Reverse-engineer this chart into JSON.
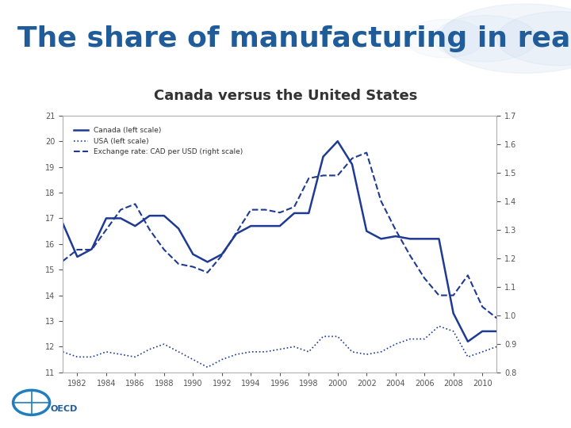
{
  "title": "The share of manufacturing in real GDP",
  "subtitle": "Canada versus the United States",
  "title_color": "#1F5C99",
  "subtitle_color": "#333333",
  "title_fontsize": 26,
  "subtitle_fontsize": 13,
  "line_color": "#1F3A93",
  "years": [
    1981,
    1982,
    1983,
    1984,
    1985,
    1986,
    1987,
    1988,
    1989,
    1990,
    1991,
    1992,
    1993,
    1994,
    1995,
    1996,
    1997,
    1998,
    1999,
    2000,
    2001,
    2002,
    2003,
    2004,
    2005,
    2006,
    2007,
    2008,
    2009,
    2010,
    2011
  ],
  "canada": [
    16.8,
    15.5,
    15.8,
    17.0,
    17.0,
    16.7,
    17.1,
    17.1,
    16.6,
    15.6,
    15.3,
    15.6,
    16.4,
    16.7,
    16.7,
    16.7,
    17.2,
    17.2,
    19.4,
    20.0,
    19.1,
    16.5,
    16.2,
    16.3,
    16.2,
    16.2,
    16.2,
    13.3,
    12.2,
    12.6,
    12.6
  ],
  "usa": [
    11.8,
    11.6,
    11.6,
    11.8,
    11.7,
    11.6,
    11.9,
    12.1,
    11.8,
    11.5,
    11.2,
    11.5,
    11.7,
    11.8,
    11.8,
    11.9,
    12.0,
    11.8,
    12.4,
    12.4,
    11.8,
    11.7,
    11.8,
    12.1,
    12.3,
    12.3,
    12.8,
    12.6,
    11.6,
    11.8,
    12.0
  ],
  "exchange": [
    1.19,
    1.23,
    1.23,
    1.3,
    1.37,
    1.39,
    1.3,
    1.23,
    1.18,
    1.17,
    1.15,
    1.21,
    1.29,
    1.37,
    1.37,
    1.36,
    1.38,
    1.48,
    1.49,
    1.49,
    1.55,
    1.57,
    1.4,
    1.3,
    1.21,
    1.13,
    1.07,
    1.07,
    1.14,
    1.03,
    0.99
  ],
  "ylim_left": [
    11,
    21
  ],
  "yticks_left": [
    11,
    12,
    13,
    14,
    15,
    16,
    17,
    18,
    19,
    20,
    21
  ],
  "ylim_right": [
    0.8,
    1.7
  ],
  "yticks_right": [
    0.8,
    0.9,
    1.0,
    1.1,
    1.2,
    1.3,
    1.4,
    1.5,
    1.6,
    1.7
  ],
  "xticks": [
    1982,
    1984,
    1986,
    1988,
    1990,
    1992,
    1994,
    1996,
    1998,
    2000,
    2002,
    2004,
    2006,
    2008,
    2010
  ],
  "xticklabels": [
    "1982",
    "1984",
    "1986",
    "1988",
    "1990",
    "1992",
    "1994",
    "1996",
    "1998",
    "2000",
    "2002",
    "2004",
    "2006",
    "2008",
    "2010"
  ],
  "legend_labels": [
    "Canada (left scale)",
    "USA (left scale)",
    "Exchange rate: CAD per USD (right scale)"
  ],
  "bg_header_color": "#D6E8F5",
  "bg_main_color": "#FFFFFF"
}
